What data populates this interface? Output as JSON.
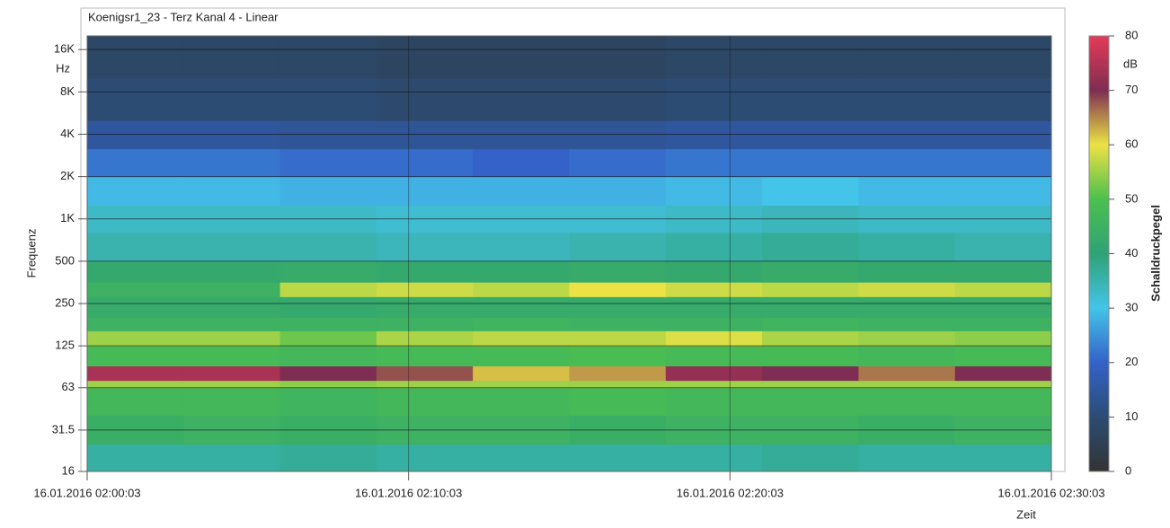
{
  "chart_data": {
    "type": "heatmap",
    "title": "Koenigsr1_23 - Terz Kanal 4 - Linear",
    "y_label": "Frequenz",
    "y_unit": "Hz",
    "x_label": "Zeit",
    "colorbar_label": "Schalldruckpegel",
    "colorbar_unit": "dB",
    "yscale": "log",
    "grid": true,
    "ylim": [
      16,
      20000
    ],
    "yticks": [
      16,
      31.5,
      63,
      125,
      250,
      500,
      {
        "value": 1000,
        "label": "1K"
      },
      {
        "value": 2000,
        "label": "2K"
      },
      {
        "value": 4000,
        "label": "4K"
      },
      {
        "value": 8000,
        "label": "8K"
      },
      {
        "value": 16000,
        "label": "16K"
      }
    ],
    "xlim": [
      "2016-01-16T02:00:03",
      "2016-01-16T02:30:03"
    ],
    "xticks": [
      {
        "value": "2016-01-16T02:00:03",
        "label": "16.01.2016 02:00:03"
      },
      {
        "value": "2016-01-16T02:10:03",
        "label": "16.01.2016 02:10:03"
      },
      {
        "value": "2016-01-16T02:20:03",
        "label": "16.01.2016 02:20:03"
      },
      {
        "value": "2016-01-16T02:30:03",
        "label": "16.01.2016 02:30:03"
      }
    ],
    "xbins": [
      "2016-01-16T02:00:03",
      "2016-01-16T02:03:03",
      "2016-01-16T02:06:03",
      "2016-01-16T02:09:03",
      "2016-01-16T02:12:03",
      "2016-01-16T02:15:03",
      "2016-01-16T02:18:03",
      "2016-01-16T02:21:03",
      "2016-01-16T02:24:03",
      "2016-01-16T02:27:03",
      "2016-01-16T02:30:03"
    ],
    "ybins": [
      16,
      25,
      40,
      63,
      71,
      90,
      125,
      160,
      200,
      280,
      355,
      500,
      800,
      1250,
      2000,
      3150,
      5000,
      10000,
      20000
    ],
    "values": [
      [
        36,
        36,
        37,
        36,
        36,
        36,
        36,
        37,
        36,
        36
      ],
      [
        44,
        45,
        44,
        45,
        45,
        44,
        45,
        45,
        44,
        45
      ],
      [
        47,
        47,
        46,
        47,
        47,
        48,
        47,
        47,
        47,
        47
      ],
      [
        55,
        55,
        54,
        55,
        55,
        55,
        55,
        55,
        55,
        55
      ],
      [
        74,
        74,
        70,
        68,
        62,
        64,
        72,
        70,
        66,
        70
      ],
      [
        48,
        48,
        47,
        48,
        48,
        49,
        48,
        48,
        47,
        48
      ],
      [
        55,
        55,
        52,
        56,
        57,
        57,
        59,
        56,
        55,
        54
      ],
      [
        45,
        45,
        45,
        45,
        46,
        45,
        45,
        46,
        45,
        45
      ],
      [
        43,
        43,
        42,
        43,
        43,
        43,
        43,
        43,
        43,
        43
      ],
      [
        45,
        45,
        57,
        58,
        57,
        60,
        58,
        57,
        58,
        57
      ],
      [
        42,
        42,
        43,
        42,
        42,
        43,
        42,
        43,
        42,
        42
      ],
      [
        35,
        35,
        35,
        34,
        34,
        35,
        36,
        37,
        36,
        35
      ],
      [
        33,
        33,
        33,
        32,
        32,
        32,
        33,
        34,
        33,
        33
      ],
      [
        29,
        29,
        28,
        28,
        28,
        28,
        29,
        30,
        29,
        29
      ],
      [
        22,
        22,
        21,
        21,
        20,
        21,
        22,
        22,
        22,
        22
      ],
      [
        15,
        15,
        14,
        14,
        14,
        14,
        15,
        15,
        15,
        15
      ],
      [
        10,
        10,
        10,
        9,
        9,
        9,
        10,
        10,
        10,
        10
      ],
      [
        8,
        8,
        8,
        7,
        7,
        7,
        8,
        8,
        8,
        8
      ]
    ],
    "clim": [
      0,
      80
    ],
    "cticks": [
      0,
      10,
      20,
      30,
      40,
      50,
      60,
      70,
      80
    ],
    "colorscale": [
      [
        0,
        "#333333"
      ],
      [
        10,
        "#2c4c74"
      ],
      [
        20,
        "#3462c8"
      ],
      [
        30,
        "#44c4e8"
      ],
      [
        40,
        "#2fa276"
      ],
      [
        50,
        "#4cc04e"
      ],
      [
        60,
        "#ece244"
      ],
      [
        70,
        "#7e2e52"
      ],
      [
        80,
        "#e63a58"
      ]
    ]
  }
}
